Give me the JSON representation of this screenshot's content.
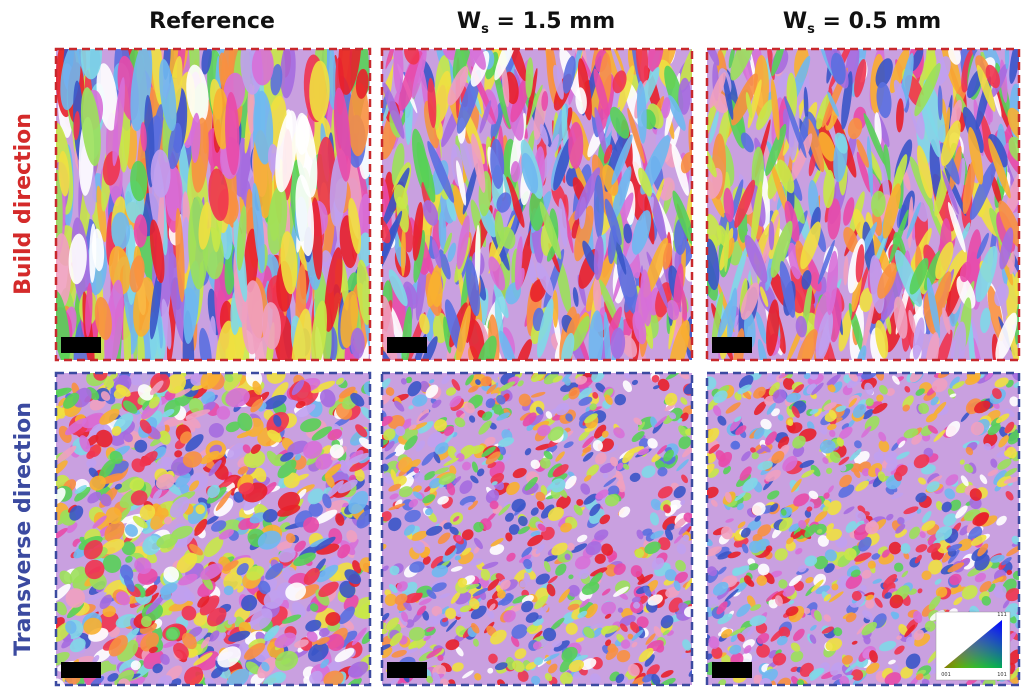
{
  "columns": [
    {
      "text": "Reference"
    },
    {
      "text": "W",
      "subscript": "s",
      "rest": " = 1.5 mm"
    },
    {
      "text": "W",
      "subscript": "s",
      "rest": " = 0.5 mm"
    }
  ],
  "rows": [
    "Build direction",
    "Transverse direction"
  ],
  "ipf_legend": {
    "top": "111",
    "left": "001",
    "right": "101"
  }
}
